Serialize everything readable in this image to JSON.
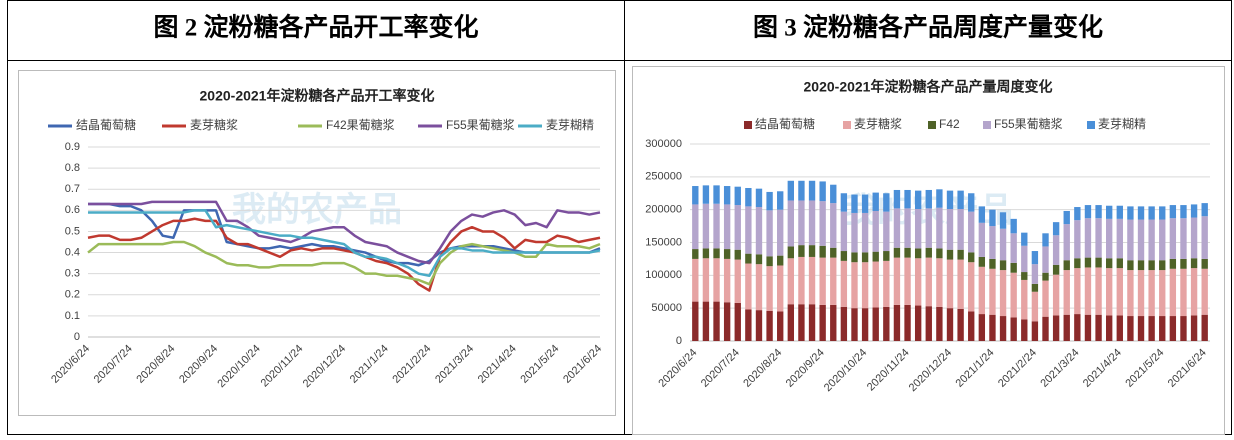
{
  "captions": [
    "图 2 淀粉糖各产品开工率变化",
    "图 3 淀粉糖各产品周度产量变化"
  ],
  "chart_data": [
    {
      "type": "line",
      "title": "2020-2021年淀粉糖各产品开工率变化",
      "watermark": "我的农产品",
      "categories": [
        "2020/6/24",
        null,
        null,
        null,
        "2020/7/24",
        null,
        null,
        null,
        "2020/8/24",
        null,
        null,
        null,
        "2020/9/24",
        null,
        null,
        null,
        "2020/10/24",
        null,
        null,
        null,
        "2020/11/24",
        null,
        null,
        null,
        "2020/12/24",
        null,
        null,
        null,
        "2021/1/24",
        null,
        null,
        null,
        "2021/2/24",
        null,
        null,
        null,
        "2021/3/24",
        null,
        null,
        null,
        "2021/4/24",
        null,
        null,
        null,
        "2021/5/24",
        null,
        null,
        null,
        "2021/6/24"
      ],
      "ylim": [
        0,
        0.9
      ],
      "yticks": [
        0,
        0.1,
        0.2,
        0.3,
        0.4,
        0.5,
        0.6,
        0.7,
        0.8,
        0.9
      ],
      "legend": "top",
      "series": [
        {
          "name": "结晶葡萄糖",
          "color": "#3f67b1",
          "values": [
            0.63,
            0.63,
            0.63,
            0.62,
            0.62,
            0.6,
            0.55,
            0.48,
            0.47,
            0.6,
            0.6,
            0.6,
            0.6,
            0.45,
            0.44,
            0.43,
            0.42,
            0.42,
            0.43,
            0.42,
            0.43,
            0.44,
            0.43,
            0.43,
            0.42,
            0.41,
            0.4,
            0.38,
            0.36,
            0.35,
            0.35,
            0.34,
            0.36,
            0.4,
            0.42,
            0.43,
            0.43,
            0.43,
            0.43,
            0.42,
            0.41,
            0.4,
            0.4,
            0.4,
            0.4,
            0.4,
            0.4,
            0.4,
            0.42
          ]
        },
        {
          "name": "麦芽糖浆",
          "color": "#c0392f",
          "values": [
            0.47,
            0.48,
            0.48,
            0.46,
            0.46,
            0.47,
            0.5,
            0.53,
            0.55,
            0.55,
            0.56,
            0.55,
            0.55,
            0.47,
            0.44,
            0.44,
            0.42,
            0.4,
            0.38,
            0.41,
            0.42,
            0.41,
            0.42,
            0.42,
            0.41,
            0.4,
            0.38,
            0.36,
            0.35,
            0.33,
            0.3,
            0.25,
            0.22,
            0.38,
            0.45,
            0.5,
            0.52,
            0.5,
            0.5,
            0.47,
            0.42,
            0.46,
            0.45,
            0.45,
            0.48,
            0.47,
            0.45,
            0.46,
            0.47
          ]
        },
        {
          "name": "F42果葡糖浆",
          "color": "#9bbb59",
          "values": [
            0.4,
            0.44,
            0.44,
            0.44,
            0.44,
            0.44,
            0.44,
            0.44,
            0.45,
            0.45,
            0.43,
            0.4,
            0.38,
            0.35,
            0.34,
            0.34,
            0.33,
            0.33,
            0.34,
            0.34,
            0.34,
            0.34,
            0.35,
            0.35,
            0.35,
            0.33,
            0.3,
            0.3,
            0.29,
            0.29,
            0.28,
            0.27,
            0.25,
            0.35,
            0.4,
            0.43,
            0.44,
            0.43,
            0.42,
            0.41,
            0.4,
            0.38,
            0.38,
            0.44,
            0.43,
            0.43,
            0.43,
            0.42,
            0.44
          ]
        },
        {
          "name": "F55果葡糖浆",
          "color": "#7b4f9d",
          "values": [
            0.63,
            0.63,
            0.63,
            0.63,
            0.63,
            0.63,
            0.64,
            0.64,
            0.64,
            0.64,
            0.64,
            0.64,
            0.64,
            0.55,
            0.55,
            0.52,
            0.48,
            0.47,
            0.46,
            0.45,
            0.47,
            0.5,
            0.51,
            0.52,
            0.52,
            0.48,
            0.45,
            0.44,
            0.43,
            0.4,
            0.38,
            0.36,
            0.35,
            0.42,
            0.5,
            0.55,
            0.58,
            0.57,
            0.59,
            0.6,
            0.58,
            0.53,
            0.54,
            0.52,
            0.6,
            0.59,
            0.59,
            0.58,
            0.59
          ]
        },
        {
          "name": "麦芽糊精",
          "color": "#4bacc6",
          "values": [
            0.59,
            0.59,
            0.59,
            0.59,
            0.59,
            0.59,
            0.59,
            0.59,
            0.59,
            0.59,
            0.6,
            0.6,
            0.52,
            0.53,
            0.52,
            0.51,
            0.5,
            0.49,
            0.48,
            0.48,
            0.47,
            0.47,
            0.46,
            0.45,
            0.44,
            0.4,
            0.38,
            0.38,
            0.37,
            0.35,
            0.33,
            0.3,
            0.29,
            0.38,
            0.42,
            0.42,
            0.41,
            0.41,
            0.4,
            0.4,
            0.4,
            0.4,
            0.4,
            0.4,
            0.4,
            0.4,
            0.4,
            0.4,
            0.41
          ]
        }
      ]
    },
    {
      "type": "bar",
      "stacked": true,
      "title": "2020-2021年淀粉糖各产品产量周度变化",
      "watermark": "我的农产品",
      "categories": [
        "2020/6/24",
        null,
        null,
        null,
        "2020/7/24",
        null,
        null,
        null,
        "2020/8/24",
        null,
        null,
        null,
        "2020/9/24",
        null,
        null,
        null,
        "2020/10/24",
        null,
        null,
        null,
        "2020/11/24",
        null,
        null,
        null,
        "2020/12/24",
        null,
        null,
        null,
        "2021/1/24",
        null,
        null,
        null,
        "2021/2/24",
        null,
        null,
        null,
        "2021/3/24",
        null,
        null,
        null,
        "2021/4/24",
        null,
        null,
        null,
        "2021/5/24",
        null,
        null,
        null,
        "2021/6/24"
      ],
      "ylim": [
        0,
        300000
      ],
      "yticks": [
        0,
        50000,
        100000,
        150000,
        200000,
        250000,
        300000
      ],
      "legend": "top",
      "series": [
        {
          "name": "结晶葡萄糖",
          "color": "#8b2a2a",
          "values": [
            60000,
            60000,
            60000,
            59000,
            58000,
            48000,
            47000,
            46000,
            45000,
            56000,
            56000,
            56000,
            55000,
            55000,
            52000,
            50000,
            50000,
            51000,
            52000,
            55000,
            55000,
            54000,
            53000,
            52000,
            50000,
            49000,
            45000,
            41000,
            40000,
            38000,
            36000,
            33000,
            30000,
            37000,
            39000,
            40000,
            41000,
            40000,
            40000,
            39000,
            39000,
            38000,
            38000,
            38000,
            38000,
            38000,
            38000,
            39000,
            40000
          ]
        },
        {
          "name": "麦芽糖浆",
          "color": "#e6a3a3",
          "values": [
            65000,
            66000,
            66000,
            66000,
            66000,
            70000,
            70000,
            68000,
            70000,
            70000,
            72000,
            72000,
            72000,
            72000,
            70000,
            70000,
            70000,
            70000,
            70000,
            72000,
            72000,
            72000,
            74000,
            74000,
            74000,
            75000,
            75000,
            72000,
            70000,
            70000,
            68000,
            60000,
            45000,
            55000,
            62000,
            68000,
            70000,
            72000,
            72000,
            72000,
            72000,
            70000,
            70000,
            70000,
            70000,
            72000,
            72000,
            72000,
            70000
          ]
        },
        {
          "name": "F42",
          "color": "#4f6228",
          "values": [
            15000,
            15000,
            15000,
            15000,
            15000,
            15000,
            15000,
            15000,
            15000,
            18000,
            18000,
            18000,
            18000,
            15000,
            15000,
            15000,
            15000,
            15000,
            15000,
            15000,
            15000,
            15000,
            15000,
            15000,
            15000,
            15000,
            15000,
            15000,
            15000,
            15000,
            15000,
            12000,
            12000,
            12000,
            15000,
            15000,
            15000,
            15000,
            15000,
            15000,
            15000,
            15000,
            15000,
            15000,
            15000,
            15000,
            15000,
            15000,
            15000
          ]
        },
        {
          "name": "F55果葡糖浆",
          "color": "#b4a5cc",
          "values": [
            68000,
            68000,
            68000,
            68000,
            68000,
            72000,
            72000,
            70000,
            70000,
            70000,
            68000,
            68000,
            68000,
            68000,
            60000,
            60000,
            60000,
            62000,
            60000,
            60000,
            60000,
            60000,
            60000,
            62000,
            62000,
            62000,
            62000,
            52000,
            50000,
            48000,
            45000,
            40000,
            30000,
            40000,
            45000,
            55000,
            58000,
            60000,
            60000,
            60000,
            60000,
            62000,
            62000,
            62000,
            62000,
            62000,
            62000,
            62000,
            65000
          ]
        },
        {
          "name": "麦芽糊精",
          "color": "#4a8fd8",
          "values": [
            28000,
            28000,
            28000,
            28000,
            28000,
            28000,
            28000,
            28000,
            28000,
            30000,
            30000,
            30000,
            30000,
            28000,
            28000,
            28000,
            28000,
            28000,
            28000,
            28000,
            28000,
            28000,
            28000,
            28000,
            28000,
            28000,
            28000,
            25000,
            25000,
            25000,
            22000,
            20000,
            20000,
            20000,
            20000,
            20000,
            20000,
            20000,
            20000,
            20000,
            20000,
            20000,
            20000,
            20000,
            20000,
            20000,
            20000,
            20000,
            20000
          ]
        }
      ]
    }
  ]
}
